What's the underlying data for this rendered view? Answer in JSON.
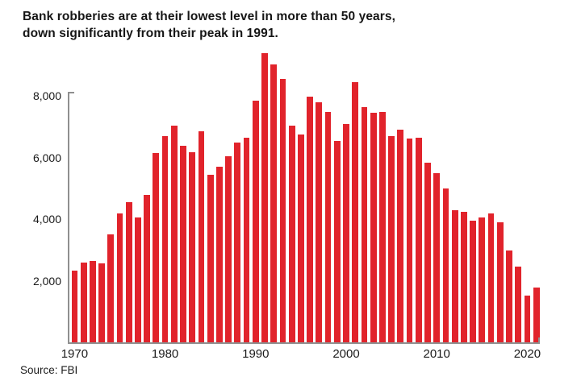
{
  "title": {
    "line1": "Bank robberies are at their lowest level in more than 50 years,",
    "line2": "down significantly from their peak in 1991."
  },
  "source": "Source: FBI",
  "chart_data": {
    "type": "bar",
    "title": "Bank robberies are at their lowest level in more than 50 years, down significantly from their peak in 1991.",
    "xlabel": "",
    "ylabel": "",
    "categories": [
      1970,
      1971,
      1972,
      1973,
      1974,
      1975,
      1976,
      1977,
      1978,
      1979,
      1980,
      1981,
      1982,
      1983,
      1984,
      1985,
      1986,
      1987,
      1988,
      1989,
      1990,
      1991,
      1992,
      1993,
      1994,
      1995,
      1996,
      1997,
      1998,
      1999,
      2000,
      2001,
      2002,
      2003,
      2004,
      2005,
      2006,
      2007,
      2008,
      2009,
      2010,
      2011,
      2012,
      2013,
      2014,
      2015,
      2016,
      2017,
      2018,
      2019,
      2020,
      2021
    ],
    "values": [
      2340,
      2600,
      2650,
      2560,
      3515,
      4180,
      4550,
      4050,
      4800,
      6150,
      6700,
      7050,
      6400,
      6180,
      6850,
      5450,
      5700,
      6050,
      6500,
      6650,
      7850,
      9390,
      9030,
      8560,
      7050,
      6750,
      7990,
      7800,
      7500,
      6550,
      7100,
      8450,
      7650,
      7450,
      7500,
      6700,
      6900,
      6620,
      6650,
      5850,
      5500,
      5000,
      4300,
      4250,
      3950,
      4050,
      4200,
      3900,
      2975,
      2450,
      1520,
      1790
    ],
    "x_tick_years": [
      1970,
      1980,
      1990,
      2000,
      2010,
      2020
    ],
    "x_tick_labels": [
      "1970",
      "1980",
      "1990",
      "2000",
      "2010",
      "2020"
    ],
    "y_tick_values": [
      2000,
      4000,
      6000,
      8000
    ],
    "y_tick_labels": [
      "2,000",
      "4,000",
      "6,000",
      "8,000"
    ],
    "ylim": [
      0,
      9400
    ],
    "grid": "off",
    "legend": "none",
    "bar_color": "#e1232b",
    "axis_color": "#8f8f8f",
    "peak_year": 1991,
    "peak_value": 9390,
    "last_year": 2021,
    "last_value": 1790
  }
}
